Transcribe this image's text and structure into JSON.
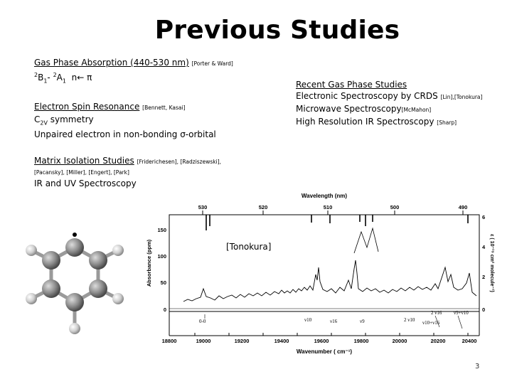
{
  "slide": {
    "title": "Previous Studies",
    "page_number": "3",
    "left": {
      "gas_phase": {
        "heading": "Gas Phase Absorption (440-530 nm)",
        "refs": "[Porter & Ward]",
        "transition": {
          "a": "2",
          "b": "B",
          "c": "1",
          "d": "- ",
          "e": "2",
          "f": "A",
          "g": "1",
          "h": "  n← π"
        }
      },
      "esr": {
        "heading": "Electron Spin Resonance",
        "refs": "[Bennett, Kasai]",
        "line1_main": "C",
        "line1_sub": "2V",
        "line1_rest": " symmetry",
        "line2": "Unpaired electron in non-bonding σ-orbital"
      },
      "matrix": {
        "heading": "Matrix Isolation Studies",
        "refs1": "[Friderichesen], [Radziszewski],",
        "refs2": "[Pacansky], [Miller], [Engert], [Park]",
        "line": "IR and UV Spectroscopy"
      }
    },
    "right": {
      "heading": "Recent Gas Phase Studies",
      "items": [
        {
          "text": "Electronic Spectroscopy by CRDS",
          "refs": "[Lin],[Tonokura]"
        },
        {
          "text": "Microwave Spectroscopy",
          "refs": "[McMahon]"
        },
        {
          "text": "High Resolution IR Spectroscopy",
          "refs": "[Sharp]"
        }
      ]
    },
    "figure": {
      "citation": "[Tonokura]",
      "top_axis_title": "Wavelength (nm)",
      "top_ticks": [
        "530",
        "520",
        "510",
        "500",
        "490"
      ],
      "bottom_axis_title": "Wavenumber ( cm⁻¹)",
      "bottom_ticks": [
        "18800",
        "19000",
        "19200",
        "19400",
        "19600",
        "19800",
        "20000",
        "20200",
        "20400"
      ],
      "left_axis_title": "Absorbance (ppm)",
      "left_ticks": [
        "0",
        "50",
        "100",
        "150"
      ],
      "right_axis_title": "ε ( 10⁻¹⁹ cm² molecule⁻¹)",
      "right_ticks": [
        "0",
        "2",
        "4",
        "6"
      ],
      "assignments": [
        "0-0",
        "ν10",
        "ν16",
        "ν9",
        "2 ν10",
        "ν10+ν16",
        "2 ν16",
        "ν9+ν10"
      ]
    }
  }
}
